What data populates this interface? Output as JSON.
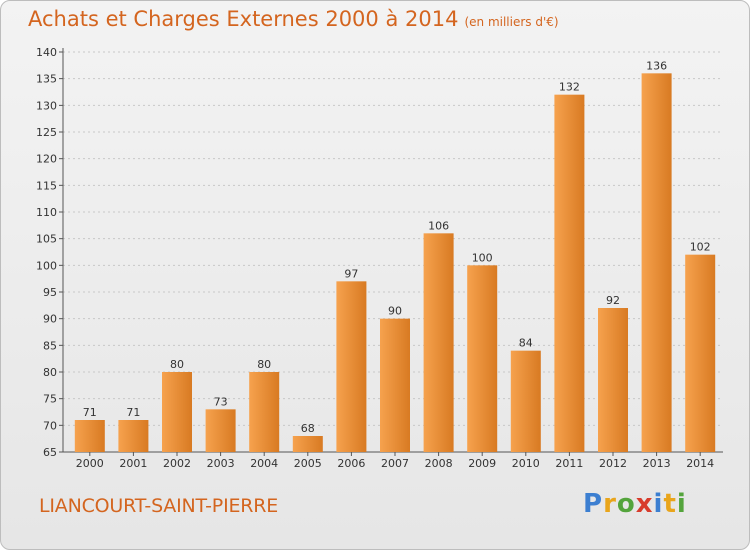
{
  "header": {
    "title": "Achats et Charges Externes 2000 à 2014",
    "subtitle": "(en milliers d'€)"
  },
  "footer": {
    "commune": "LIANCOURT-SAINT-PIERRE",
    "brand_letters": [
      "P",
      "r",
      "o",
      "x",
      "i",
      "t",
      "i"
    ],
    "brand_colors": [
      "#3c7fd1",
      "#e9a51b",
      "#54a43c",
      "#d83c2c",
      "#3c7fd1",
      "#e9a51b",
      "#54a43c"
    ]
  },
  "colors": {
    "bar_light": "#f6a24e",
    "bar_dark": "#d87a22",
    "accent": "#d4651f",
    "grid": "#c8c8c8"
  },
  "chart_data": {
    "type": "bar",
    "categories": [
      "2000",
      "2001",
      "2002",
      "2003",
      "2004",
      "2005",
      "2006",
      "2007",
      "2008",
      "2009",
      "2010",
      "2011",
      "2012",
      "2013",
      "2014"
    ],
    "values": [
      71,
      71,
      80,
      73,
      80,
      68,
      97,
      90,
      106,
      100,
      84,
      132,
      92,
      136,
      102
    ],
    "title": "Achats et Charges Externes 2000 à 2014",
    "subtitle": "(en milliers d'€)",
    "xlabel": "",
    "ylabel": "",
    "ylim": [
      65,
      140
    ],
    "yticks": [
      65,
      70,
      75,
      80,
      85,
      90,
      95,
      100,
      105,
      110,
      115,
      120,
      125,
      130,
      135,
      140
    ],
    "grid": true,
    "data_labels": true
  }
}
